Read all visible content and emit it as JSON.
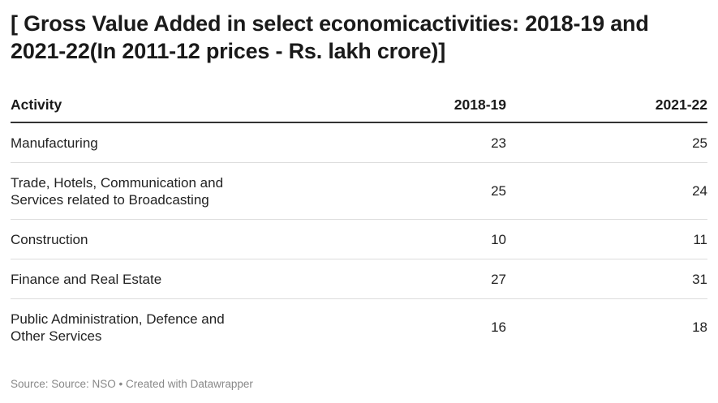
{
  "chart_data": {
    "type": "table",
    "title": "[ Gross Value Added in select economicactivities: 2018-19 and 2021-22(In 2011-12 prices - Rs. lakh crore)]",
    "columns": [
      "Activity",
      "2018-19",
      "2021-22"
    ],
    "rows": [
      {
        "activity": "Manufacturing",
        "v2018": "23",
        "v2021": "25"
      },
      {
        "activity": "Trade, Hotels, Communication and Services related to Broadcasting",
        "v2018": "25",
        "v2021": "24"
      },
      {
        "activity": "Construction",
        "v2018": "10",
        "v2021": "11"
      },
      {
        "activity": "Finance and Real Estate",
        "v2018": "27",
        "v2021": "31"
      },
      {
        "activity": "Public Administration, Defence and Other Services",
        "v2018": "16",
        "v2021": "18"
      }
    ],
    "source": "Source: Source: NSO • Created with Datawrapper"
  }
}
